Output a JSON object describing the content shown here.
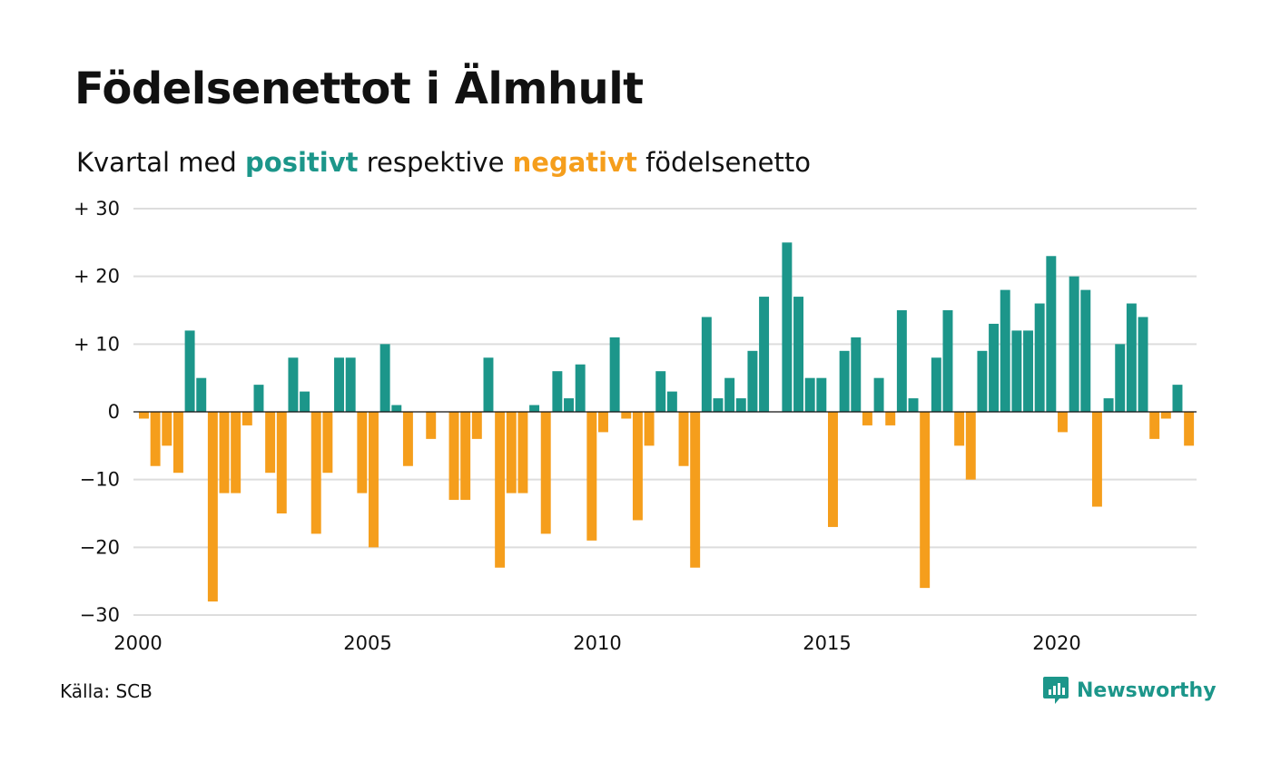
{
  "header": {
    "title": "Födelsenettot i Älmhult",
    "subtitle_before": "Kvartal med",
    "subtitle_pos": "positivt",
    "subtitle_mid": "respektive",
    "subtitle_neg": "negativt",
    "subtitle_after": "födelsenetto"
  },
  "footer": {
    "source": "Källa: SCB",
    "brand": "Newsworthy"
  },
  "colors": {
    "positive": "#1c968a",
    "negative": "#f59e1c",
    "grid": "#dddddd",
    "zero_line": "#111111"
  },
  "icons": {
    "brand_logo": "newsworthy-logo-icon"
  },
  "chart_data": {
    "type": "bar",
    "title": "Födelsenettot i Älmhult",
    "subtitle": "Kvartal med positivt respektive negativt födelsenetto",
    "xlabel": "",
    "ylabel": "",
    "ylim": [
      -30,
      30
    ],
    "yticks": [
      30,
      20,
      10,
      0,
      -10,
      -20,
      -30
    ],
    "ytick_labels": [
      "+ 30",
      "+ 20",
      "+ 10",
      "0",
      "−10",
      "−20",
      "−30"
    ],
    "xticks": [
      2000,
      2005,
      2010,
      2015,
      2020
    ],
    "xtick_labels": [
      "2000",
      "2005",
      "2010",
      "2015",
      "2020"
    ],
    "grid": true,
    "legend": "none",
    "x_start_year": 2000,
    "periods_per_year": 4,
    "values": [
      -1,
      -8,
      -5,
      -9,
      12,
      5,
      -28,
      -12,
      -12,
      -2,
      4,
      -9,
      -15,
      8,
      3,
      -18,
      -9,
      8,
      8,
      -12,
      -20,
      10,
      1,
      -8,
      0,
      -4,
      0,
      -13,
      -13,
      -4,
      8,
      -23,
      -12,
      -12,
      1,
      -18,
      6,
      2,
      7,
      -19,
      -3,
      11,
      -1,
      -16,
      -5,
      6,
      3,
      -8,
      -23,
      14,
      2,
      5,
      2,
      9,
      17,
      0,
      25,
      17,
      5,
      5,
      -17,
      9,
      11,
      -2,
      5,
      -2,
      15,
      2,
      -26,
      8,
      15,
      -5,
      -10,
      9,
      13,
      18,
      12,
      12,
      16,
      23,
      -3,
      20,
      18,
      -14,
      2,
      10,
      16,
      14,
      -4,
      -1,
      4,
      -5
    ]
  }
}
